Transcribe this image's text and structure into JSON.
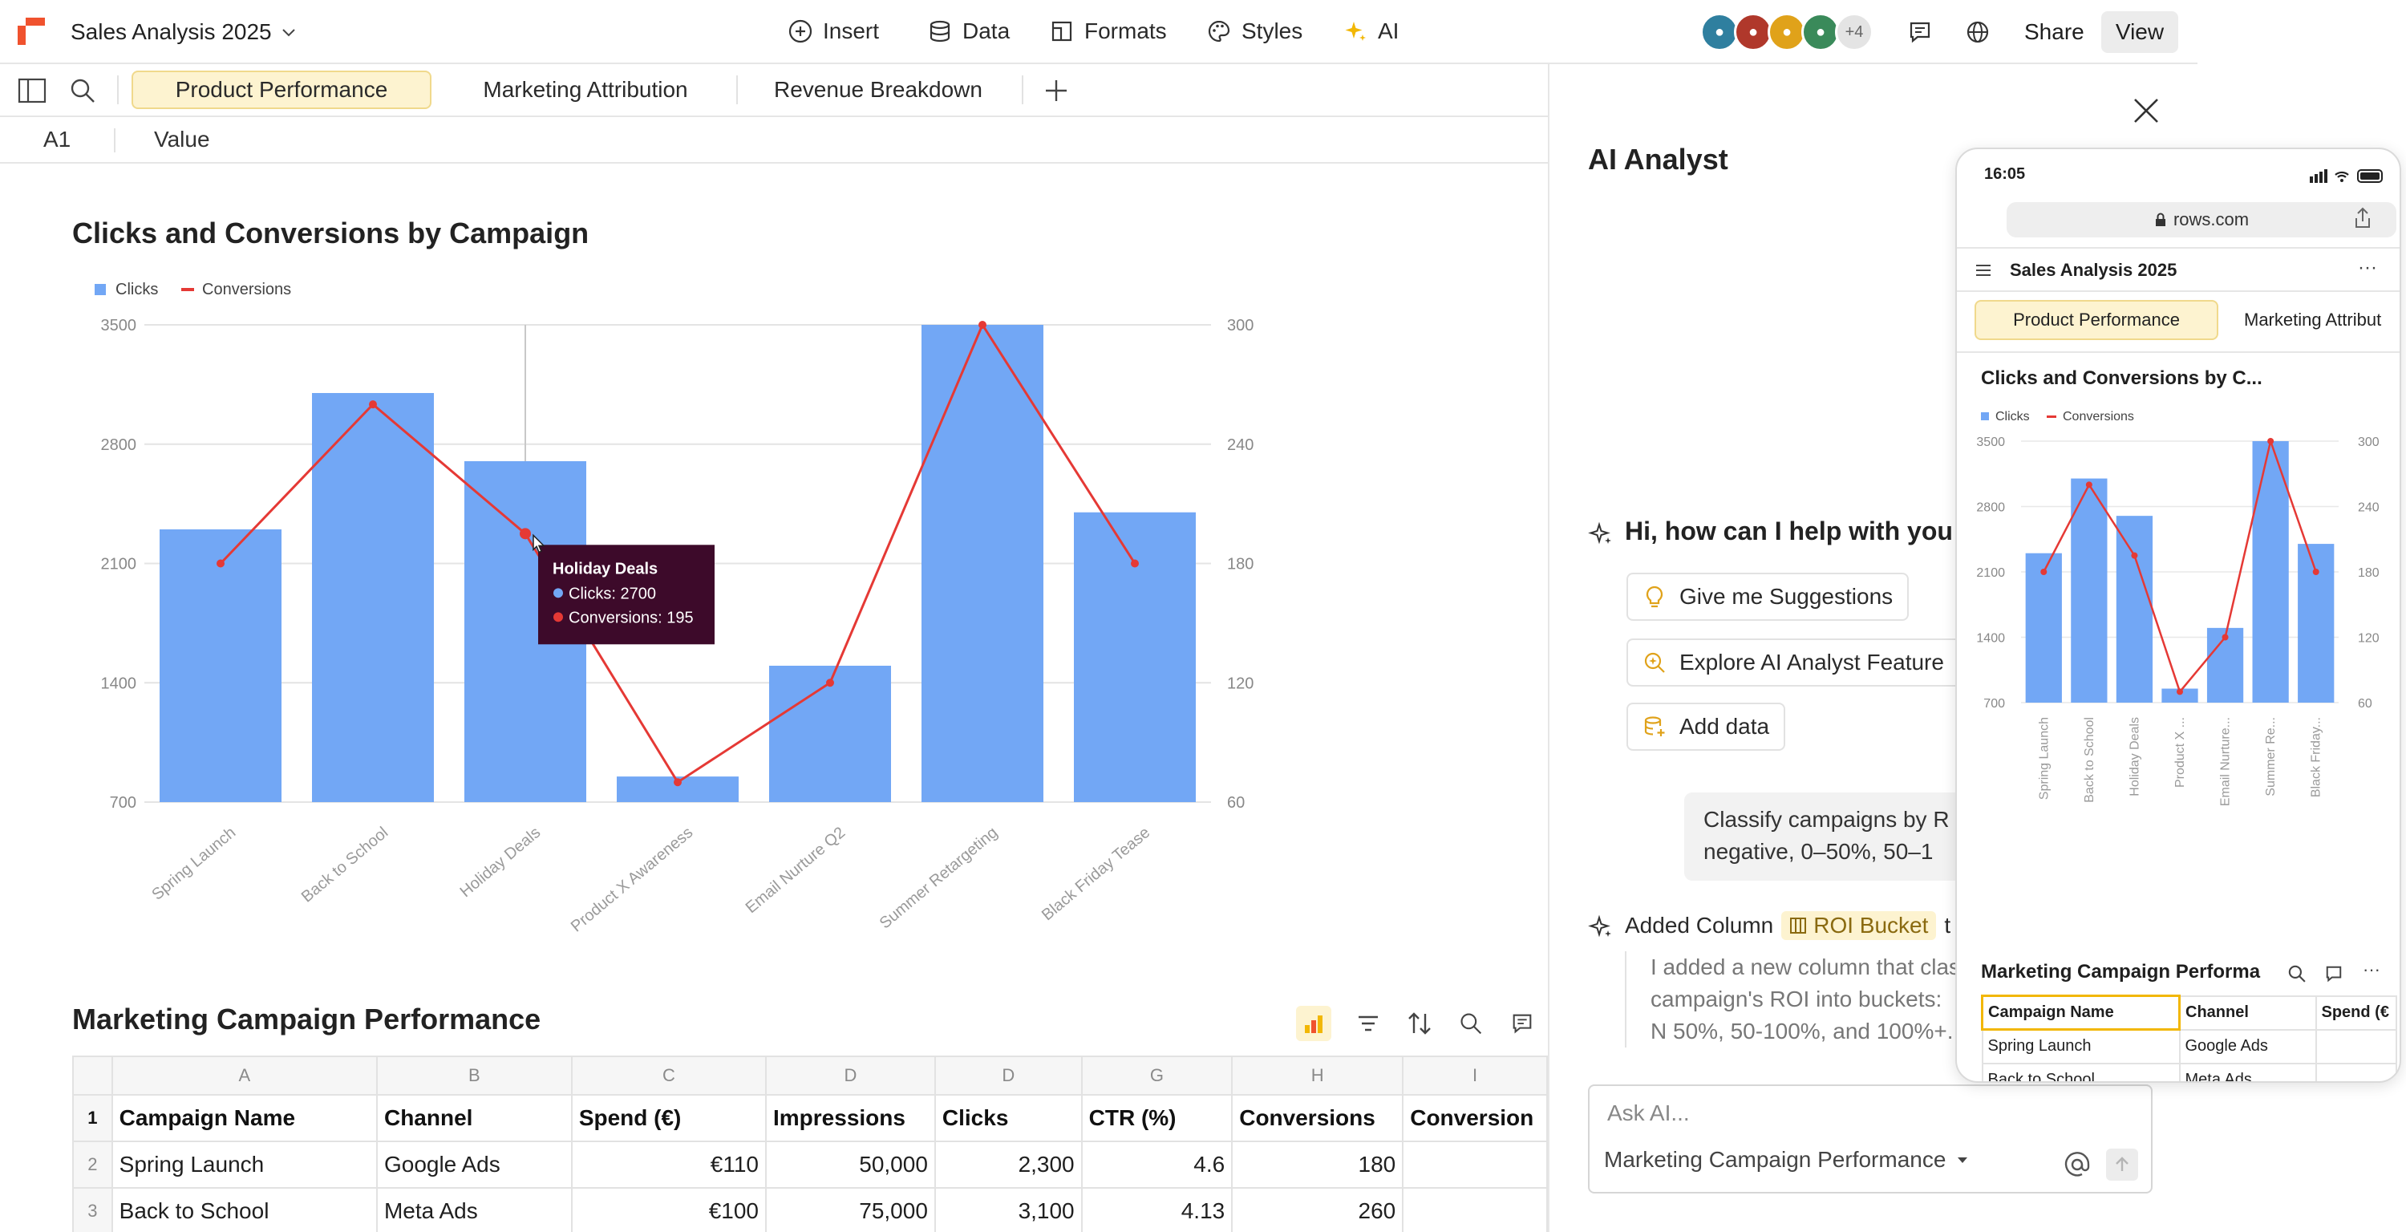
{
  "header": {
    "doc_title": "Sales Analysis 2025",
    "menu": [
      {
        "label": "Insert",
        "icon": "plus-circle-icon"
      },
      {
        "label": "Data",
        "icon": "database-icon"
      },
      {
        "label": "Formats",
        "icon": "formats-icon"
      },
      {
        "label": "Styles",
        "icon": "palette-icon"
      },
      {
        "label": "AI",
        "icon": "sparkle-icon"
      }
    ],
    "collaborators_more": "+4",
    "share_label": "Share",
    "view_label": "View"
  },
  "tabs": [
    "Product Performance",
    "Marketing Attribution",
    "Revenue Breakdown"
  ],
  "formula_bar": {
    "cell_ref": "A1",
    "value": "Value"
  },
  "chart_data": {
    "type": "bar",
    "title": "Clicks and Conversions by Campaign",
    "categories": [
      "Spring Launch",
      "Back to School",
      "Holiday Deals",
      "Product X Awareness",
      "Email Nurture Q2",
      "Summer Retargeting",
      "Black Friday Tease"
    ],
    "series": [
      {
        "name": "Clicks",
        "type": "bar",
        "axis": "left",
        "color": "#72a7f5",
        "values": [
          2300,
          3100,
          2700,
          850,
          1500,
          3500,
          2400
        ]
      },
      {
        "name": "Conversions",
        "type": "line",
        "axis": "right",
        "color": "#e53935",
        "values": [
          180,
          260,
          195,
          70,
          120,
          300,
          180
        ]
      }
    ],
    "y_left": {
      "ticks": [
        700,
        1400,
        2100,
        2800,
        3500
      ],
      "ylim": [
        700,
        3500
      ]
    },
    "y_right": {
      "ticks": [
        60,
        120,
        180,
        240,
        300
      ],
      "ylim": [
        60,
        300
      ]
    },
    "legend": "top-left",
    "grid": true,
    "tooltip": {
      "title": "Holiday Deals",
      "lines": [
        "Clicks: 2700",
        "Conversions: 195"
      ]
    }
  },
  "table": {
    "title": "Marketing Campaign Performance",
    "column_letters": [
      "A",
      "B",
      "C",
      "D",
      "D",
      "G",
      "H",
      "I"
    ],
    "row_numbers": [
      "1",
      "2",
      "3"
    ],
    "headers": [
      "Campaign Name",
      "Channel",
      "Spend (€)",
      "Impressions",
      "Clicks",
      "CTR (%)",
      "Conversions",
      "Conversion"
    ],
    "rows": [
      [
        "Spring Launch",
        "Google Ads",
        "€110",
        "50,000",
        "2,300",
        "4.6",
        "180",
        ""
      ],
      [
        "Back to School",
        "Meta Ads",
        "€100",
        "75,000",
        "3,100",
        "4.13",
        "260",
        ""
      ]
    ]
  },
  "ai_panel": {
    "title": "AI Analyst",
    "greeting": "Hi, how can I help with you",
    "suggestions": [
      {
        "label": "Give me Suggestions",
        "icon": "lightbulb-icon"
      },
      {
        "label": "Explore AI Analyst Feature",
        "icon": "search-sparkle-icon"
      },
      {
        "label": "Add data",
        "icon": "database-add-icon"
      }
    ],
    "user_message": "Classify campaigns by R negative, 0–50%, 50–1",
    "added_prefix": "Added Column",
    "added_chip": "ROI Bucket",
    "added_suffix": "t",
    "description": "I added a new column that clas campaign's ROI into buckets: N 50%, 50-100%, and 100%+.",
    "ask_placeholder": "Ask AI...",
    "context_label": "Marketing Campaign Performance"
  },
  "phone": {
    "time": "16:05",
    "url": "rows.com",
    "doc_title": "Sales Analysis 2025",
    "tab_active": "Product Performance",
    "tab_next": "Marketing Attribut",
    "chart_title": "Clicks and Conversions by C...",
    "legend": [
      "Clicks",
      "Conversions"
    ],
    "y_left_ticks": [
      "3500",
      "2800",
      "2100",
      "1400",
      "700"
    ],
    "y_right_ticks": [
      "300",
      "240",
      "180",
      "120",
      "60"
    ],
    "x_labels": [
      "Spring Launch",
      "Back to School",
      "Holiday Deals",
      "Product X ...",
      "Email Nurture...",
      "Summer Re...",
      "Black Friday..."
    ],
    "table_title": "Marketing Campaign Performa",
    "table_headers": [
      "Campaign Name",
      "Channel",
      "Spend (€"
    ],
    "table_rows": [
      [
        "Spring Launch",
        "Google Ads",
        ""
      ],
      [
        "Back to School",
        "Meta Ads",
        ""
      ]
    ]
  }
}
